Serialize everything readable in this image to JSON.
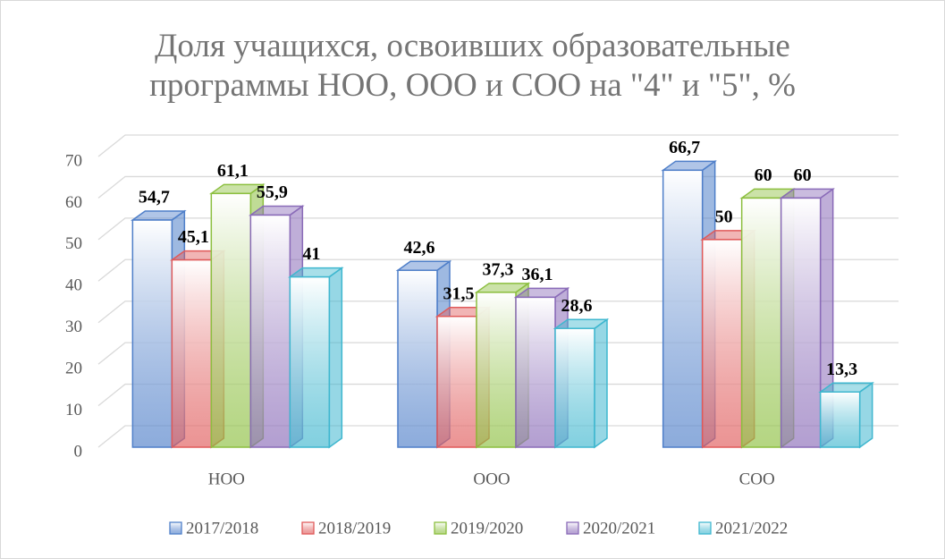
{
  "chart_data": {
    "type": "bar3d",
    "title": "Доля учащихся, освоивших образовательные программы НОО, ООО и СОО на \"4\" и \"5\", %",
    "categories": [
      "НОО",
      "ООО",
      "СОО"
    ],
    "series": [
      {
        "name": "2017/2018",
        "color": "#4f7fc9",
        "values": [
          54.7,
          42.6,
          66.7
        ],
        "value_labels": [
          "54,7",
          "42,6",
          "66,7"
        ]
      },
      {
        "name": "2018/2019",
        "color": "#e05a5a",
        "values": [
          45.1,
          31.5,
          50
        ],
        "value_labels": [
          "45,1",
          "31,5",
          "50"
        ]
      },
      {
        "name": "2019/2020",
        "color": "#8cbf3f",
        "values": [
          61.1,
          37.3,
          60
        ],
        "value_labels": [
          "61,1",
          "37,3",
          "60"
        ]
      },
      {
        "name": "2020/2021",
        "color": "#8a6bb8",
        "values": [
          55.9,
          36.1,
          60
        ],
        "value_labels": [
          "55,9",
          "36,1",
          "60"
        ]
      },
      {
        "name": "2021/2022",
        "color": "#3fb7cf",
        "values": [
          41,
          28.6,
          13.3
        ],
        "value_labels": [
          "41",
          "28,6",
          "13,3"
        ]
      }
    ],
    "ylim": [
      0,
      70
    ],
    "yticks": [
      0,
      10,
      20,
      30,
      40,
      50,
      60,
      70
    ],
    "grid": true,
    "legend": "bottom"
  }
}
